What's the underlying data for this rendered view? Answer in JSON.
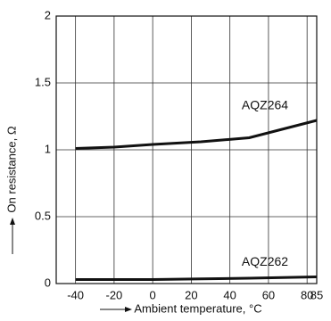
{
  "chart_data": {
    "type": "line",
    "x": [
      -40,
      -20,
      0,
      25,
      50,
      85
    ],
    "series": [
      {
        "name": "AQZ264",
        "color": "#111111",
        "values": [
          1.01,
          1.02,
          1.04,
          1.06,
          1.09,
          1.22
        ]
      },
      {
        "name": "AQZ262",
        "color": "#111111",
        "values": [
          0.03,
          0.03,
          0.03,
          0.035,
          0.04,
          0.05
        ]
      }
    ],
    "xlim": [
      -50,
      85
    ],
    "xticks": [
      -40,
      -20,
      0,
      20,
      40,
      60,
      80,
      85
    ],
    "ylim": [
      0,
      2
    ],
    "yticks": [
      0,
      0.5,
      1,
      1.5,
      2
    ],
    "xlabel": "Ambient temperature, °C",
    "ylabel": "On resistance, Ω",
    "grid": true
  }
}
